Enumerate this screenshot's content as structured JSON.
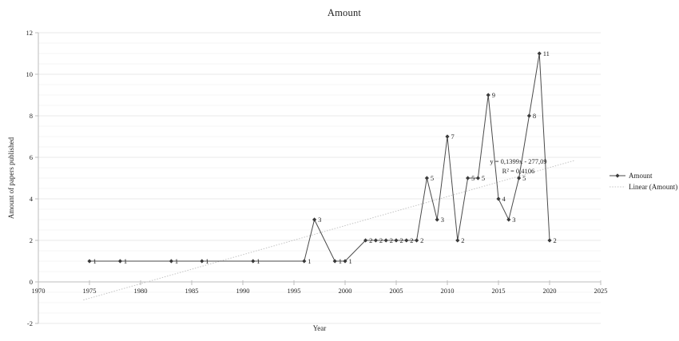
{
  "window": {
    "background": "#ffffff"
  },
  "colors": {
    "series_line": "#4a4a4a",
    "marker": "#3a3a3a",
    "trendline": "#c4c4c4",
    "grid_major": "#e9e9e9",
    "grid_minor": "#f6f6f6",
    "axis": "#bdbdbd",
    "text": "#1f1f1f"
  },
  "chart_data": {
    "type": "line",
    "title": "Amount",
    "xlabel": "Year",
    "ylabel": "Amount of papers published",
    "series_name": "Amount",
    "x": [
      1975,
      1978,
      1983,
      1986,
      1991,
      1996,
      1997,
      1999,
      2000,
      2002,
      2003,
      2004,
      2005,
      2006,
      2007,
      2008,
      2009,
      2010,
      2011,
      2012,
      2013,
      2014,
      2015,
      2016,
      2017,
      2018,
      2019,
      2020
    ],
    "values": [
      1,
      1,
      1,
      1,
      1,
      1,
      3,
      1,
      1,
      2,
      2,
      2,
      2,
      2,
      2,
      5,
      3,
      7,
      2,
      5,
      5,
      9,
      4,
      3,
      5,
      8,
      11,
      2
    ],
    "point_labels_visible": true,
    "xlim": [
      1970,
      2025
    ],
    "ylim": [
      -2,
      12
    ],
    "x_ticks": [
      1970,
      1975,
      1980,
      1985,
      1990,
      1995,
      2000,
      2005,
      2010,
      2015,
      2020,
      2025
    ],
    "y_ticks": [
      -2,
      0,
      2,
      4,
      6,
      8,
      10,
      12
    ],
    "y_minor_step": 0.5,
    "grid": "horizontal major + minor, no vertical gridlines",
    "marker_shape": "diamond",
    "legend": {
      "position": "right",
      "entries": [
        "Amount",
        "Linear (Amount)"
      ]
    },
    "trendline": {
      "style": "dotted",
      "slope": 0.1399,
      "intercept": -277.09,
      "r2": 0.4106,
      "equation_label": "y = 0,1399x - 277,09",
      "r2_label": "R² = 0,4106",
      "x_start": 1974.4,
      "x_end": 2022.4
    }
  }
}
